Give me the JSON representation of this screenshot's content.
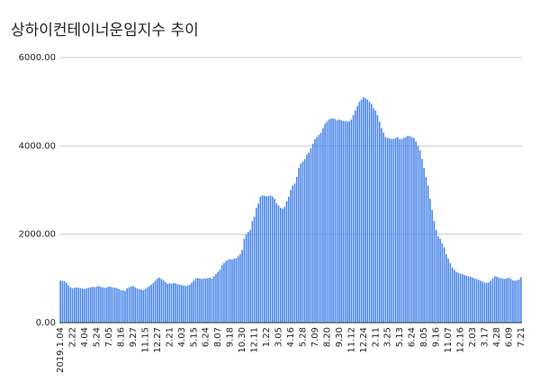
{
  "chart_data": {
    "type": "bar",
    "title": "상하이컨테이너운임지수 추이",
    "color": "#4a86e8",
    "grid": true,
    "ylim": [
      0,
      6000
    ],
    "yticks": [
      {
        "value": 0,
        "label": "0.00"
      },
      {
        "value": 2000,
        "label": "2000.00"
      },
      {
        "value": 4000,
        "label": "4000.00"
      },
      {
        "value": 6000,
        "label": "6000.00"
      }
    ],
    "categories": [
      "2019.1.04",
      null,
      null,
      null,
      null,
      null,
      "2.22",
      null,
      null,
      null,
      null,
      null,
      "4.04",
      null,
      null,
      null,
      null,
      null,
      "5.24",
      null,
      null,
      null,
      null,
      null,
      "7.05",
      null,
      null,
      null,
      null,
      null,
      "8.16",
      null,
      null,
      null,
      null,
      null,
      "9.27",
      null,
      null,
      null,
      null,
      null,
      "11.15",
      null,
      null,
      null,
      null,
      null,
      "12.27",
      null,
      null,
      null,
      null,
      null,
      "2.21",
      null,
      null,
      null,
      null,
      null,
      "4.03",
      null,
      null,
      null,
      null,
      null,
      "5.15",
      null,
      null,
      null,
      null,
      null,
      "6.24",
      null,
      null,
      null,
      null,
      null,
      "8.07",
      null,
      null,
      null,
      null,
      null,
      "9.18",
      null,
      null,
      null,
      null,
      null,
      "10.30",
      null,
      null,
      null,
      null,
      null,
      "12.11",
      null,
      null,
      null,
      null,
      null,
      "1.22",
      null,
      null,
      null,
      null,
      null,
      "3.05",
      null,
      null,
      null,
      null,
      null,
      "4.16",
      null,
      null,
      null,
      null,
      null,
      "5.28",
      null,
      null,
      null,
      null,
      null,
      "7.09",
      null,
      null,
      null,
      null,
      null,
      "8.20",
      null,
      null,
      null,
      null,
      null,
      "9.30",
      null,
      null,
      null,
      null,
      null,
      "11.12",
      null,
      null,
      null,
      null,
      null,
      "12.24",
      null,
      null,
      null,
      null,
      null,
      "2.11",
      null,
      null,
      null,
      null,
      null,
      "3.25",
      null,
      null,
      null,
      null,
      null,
      "5.13",
      null,
      null,
      null,
      null,
      null,
      "6.24",
      null,
      null,
      null,
      null,
      null,
      "8.05",
      null,
      null,
      null,
      null,
      null,
      "9.16",
      null,
      null,
      null,
      null,
      null,
      "11.07",
      null,
      null,
      null,
      null,
      null,
      "12.16",
      null,
      null,
      null,
      null,
      null,
      "2.03",
      null,
      null,
      null,
      null,
      null,
      "3.17",
      null,
      null,
      null,
      null,
      null,
      "4.28",
      null,
      null,
      null,
      null,
      null,
      "6.09",
      null,
      null,
      null,
      null,
      null,
      "7.21"
    ],
    "values": [
      950,
      950,
      940,
      900,
      850,
      800,
      780,
      790,
      800,
      790,
      780,
      770,
      760,
      780,
      790,
      800,
      810,
      800,
      820,
      830,
      810,
      800,
      790,
      800,
      820,
      810,
      800,
      790,
      780,
      760,
      740,
      730,
      720,
      780,
      800,
      820,
      830,
      800,
      780,
      760,
      750,
      740,
      760,
      800,
      830,
      860,
      900,
      950,
      1000,
      1020,
      990,
      960,
      920,
      880,
      890,
      880,
      900,
      890,
      870,
      860,
      850,
      840,
      830,
      840,
      860,
      900,
      950,
      1000,
      1010,
      1000,
      990,
      1000,
      1000,
      1010,
      1020,
      1000,
      1050,
      1100,
      1150,
      1200,
      1300,
      1350,
      1400,
      1420,
      1440,
      1430,
      1450,
      1460,
      1500,
      1550,
      1650,
      1900,
      2000,
      2050,
      2100,
      2300,
      2400,
      2600,
      2700,
      2850,
      2880,
      2870,
      2860,
      2870,
      2880,
      2850,
      2800,
      2700,
      2650,
      2600,
      2580,
      2620,
      2750,
      2850,
      3000,
      3100,
      3150,
      3300,
      3500,
      3600,
      3650,
      3700,
      3800,
      3850,
      3950,
      4050,
      4150,
      4200,
      4250,
      4300,
      4400,
      4500,
      4550,
      4600,
      4620,
      4620,
      4610,
      4580,
      4600,
      4580,
      4570,
      4560,
      4550,
      4560,
      4600,
      4700,
      4800,
      4900,
      5000,
      5050,
      5100,
      5080,
      5050,
      5000,
      4950,
      4850,
      4800,
      4700,
      4550,
      4400,
      4300,
      4200,
      4180,
      4170,
      4150,
      4160,
      4180,
      4200,
      4150,
      4160,
      4180,
      4200,
      4230,
      4220,
      4200,
      4180,
      4100,
      4000,
      3900,
      3700,
      3500,
      3300,
      3100,
      2800,
      2550,
      2300,
      2100,
      1950,
      1900,
      1800,
      1700,
      1550,
      1450,
      1350,
      1250,
      1200,
      1150,
      1130,
      1110,
      1100,
      1080,
      1060,
      1050,
      1040,
      1020,
      1000,
      990,
      970,
      950,
      930,
      910,
      900,
      910,
      950,
      1000,
      1050,
      1040,
      1020,
      1010,
      1000,
      990,
      1000,
      1020,
      990,
      960,
      950,
      960,
      980,
      1030
    ]
  }
}
